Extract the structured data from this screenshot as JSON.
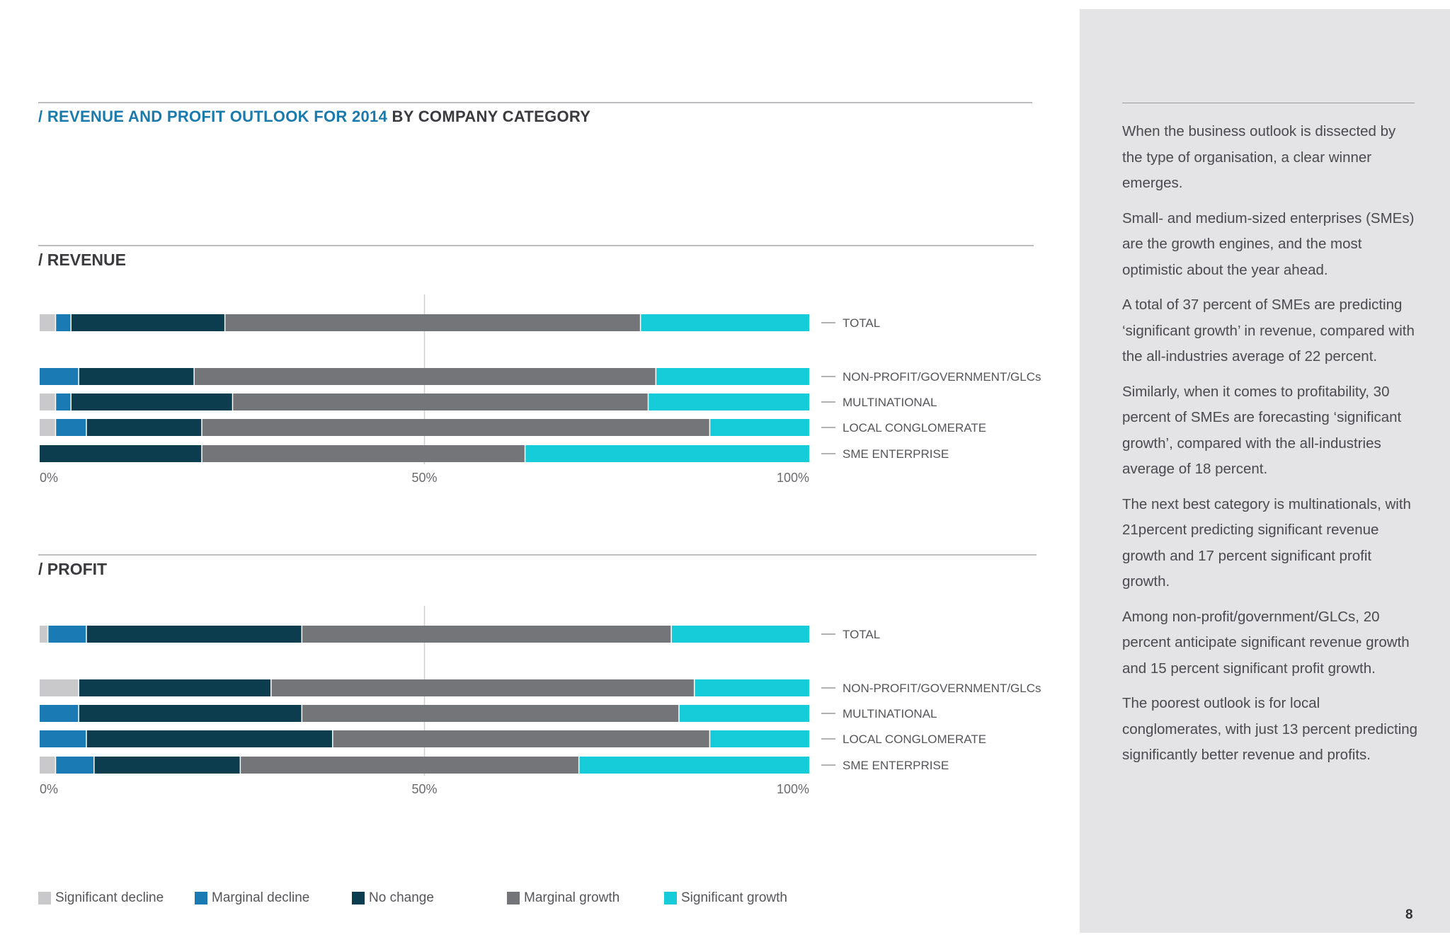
{
  "header": {
    "title_accent": "/ REVENUE AND PROFIT OUTLOOK FOR 2014",
    "title_rest": " BY COMPANY CATEGORY"
  },
  "colors": {
    "significant_decline": "#c9c9cc",
    "marginal_decline": "#1a7ab3",
    "no_change": "#0c3d4f",
    "marginal_growth": "#747578",
    "significant_growth": "#17ccd9",
    "accent": "#1a7aac"
  },
  "legend": [
    {
      "label": "Significant decline",
      "color": "#c9c9cc"
    },
    {
      "label": "Marginal decline",
      "color": "#1a7ab3"
    },
    {
      "label": "No change",
      "color": "#0c3d4f"
    },
    {
      "label": "Marginal growth",
      "color": "#747578"
    },
    {
      "label": "Significant growth",
      "color": "#17ccd9"
    }
  ],
  "chart_data": [
    {
      "type": "bar",
      "orientation": "horizontal",
      "stacked": true,
      "title": "/ REVENUE",
      "categories": [
        "TOTAL",
        "NON-PROFIT/GOVERNMENT/GLCs",
        "MULTINATIONAL",
        "LOCAL CONGLOMERATE",
        "SME ENTERPRISE"
      ],
      "series": [
        {
          "name": "Significant decline",
          "values": [
            2,
            0,
            2,
            2,
            0
          ]
        },
        {
          "name": "Marginal decline",
          "values": [
            2,
            5,
            2,
            4,
            0
          ]
        },
        {
          "name": "No change",
          "values": [
            20,
            15,
            21,
            15,
            21
          ]
        },
        {
          "name": "Marginal growth",
          "values": [
            54,
            60,
            54,
            66,
            42
          ]
        },
        {
          "name": "Significant growth",
          "values": [
            22,
            20,
            21,
            13,
            37
          ]
        }
      ],
      "x_tick_labels": [
        "0%",
        "50%",
        "100%"
      ],
      "xlim": [
        0,
        100
      ],
      "legend_position": "bottom"
    },
    {
      "type": "bar",
      "orientation": "horizontal",
      "stacked": true,
      "title": "/ PROFIT",
      "categories": [
        "TOTAL",
        "NON-PROFIT/GOVERNMENT/GLCs",
        "MULTINATIONAL",
        "LOCAL CONGLOMERATE",
        "SME ENTERPRISE"
      ],
      "series": [
        {
          "name": "Significant decline",
          "values": [
            1,
            5,
            0,
            0,
            2
          ]
        },
        {
          "name": "Marginal decline",
          "values": [
            5,
            0,
            5,
            6,
            5
          ]
        },
        {
          "name": "No change",
          "values": [
            28,
            25,
            29,
            32,
            19
          ]
        },
        {
          "name": "Marginal growth",
          "values": [
            48,
            55,
            49,
            49,
            44
          ]
        },
        {
          "name": "Significant growth",
          "values": [
            18,
            15,
            17,
            13,
            30
          ]
        }
      ],
      "x_tick_labels": [
        "0%",
        "50%",
        "100%"
      ],
      "xlim": [
        0,
        100
      ],
      "legend_position": "bottom"
    }
  ],
  "sidebar": {
    "paragraphs": [
      "When the business outlook is dissected by the type of organisation, a clear winner emerges.",
      "Small- and medium-sized enterprises (SMEs) are the growth engines, and the most optimistic about the year ahead.",
      "A total of 37 percent of SMEs are predicting ‘significant growth’ in revenue, compared with the all-industries average of 22 percent.",
      "Similarly, when it comes to profitability, 30 percent of SMEs are forecasting ‘significant growth’, compared with the all-industries average of 18 percent.",
      "The next best category is multinationals, with 21percent predicting significant revenue growth and 17 percent significant profit growth.",
      "Among non-profit/government/GLCs, 20 percent anticipate significant revenue growth and 15 percent significant profit growth.",
      "The poorest outlook is for local conglomerates, with just 13 percent predicting significantly better revenue and profits."
    ]
  },
  "page_number": "8"
}
